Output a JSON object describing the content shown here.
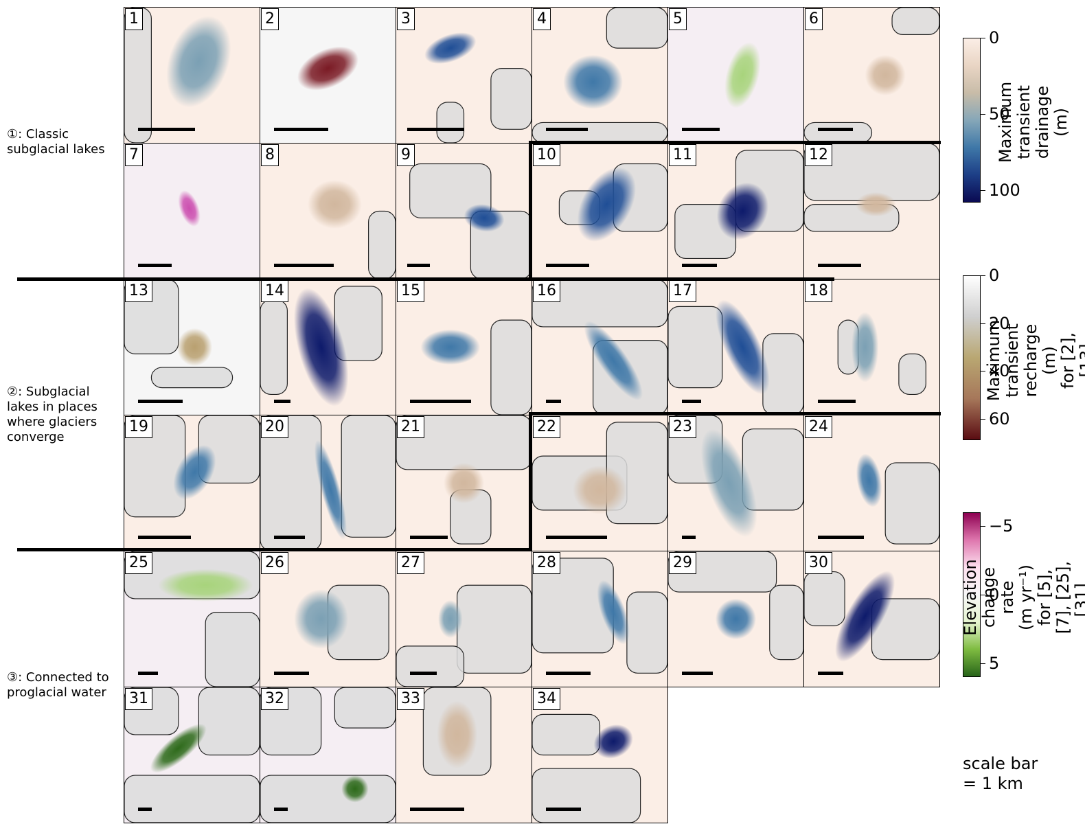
{
  "panels": [
    {
      "n": "1",
      "v": "drainage",
      "blob": [
        0.55,
        0.4,
        0.22,
        0.35,
        20,
        0.35
      ],
      "bar": [
        0.1,
        0.52
      ],
      "ice": [
        [
          0.0,
          0.0,
          0.2,
          1.0
        ]
      ]
    },
    {
      "n": "2",
      "v": "recharge",
      "blob": [
        0.5,
        0.45,
        0.24,
        0.14,
        -25,
        1.0
      ],
      "bar": [
        0.1,
        0.5
      ],
      "ice": []
    },
    {
      "n": "3",
      "v": "drainage",
      "blob": [
        0.4,
        0.3,
        0.2,
        0.1,
        -20,
        0.8
      ],
      "bar": [
        0.08,
        0.5
      ],
      "ice": [
        [
          0.7,
          0.45,
          0.3,
          0.45
        ],
        [
          0.3,
          0.7,
          0.2,
          0.3
        ]
      ]
    },
    {
      "n": "4",
      "v": "drainage",
      "blob": [
        0.45,
        0.55,
        0.22,
        0.2,
        0,
        0.6
      ],
      "bar": [
        0.1,
        0.41
      ],
      "ice": [
        [
          0.55,
          0.0,
          0.45,
          0.3
        ],
        [
          0.0,
          0.85,
          1.0,
          0.15
        ]
      ]
    },
    {
      "n": "5",
      "v": "rate",
      "blob": [
        0.55,
        0.5,
        0.12,
        0.25,
        15,
        0.6
      ],
      "bar": [
        0.1,
        0.38
      ],
      "ice": []
    },
    {
      "n": "6",
      "v": "drainage",
      "blob": [
        0.6,
        0.5,
        0.15,
        0.15,
        0,
        0.1
      ],
      "bar": [
        0.1,
        0.36
      ],
      "ice": [
        [
          0.65,
          0.0,
          0.35,
          0.2
        ],
        [
          0.0,
          0.85,
          0.5,
          0.15
        ]
      ]
    },
    {
      "n": "7",
      "v": "rate",
      "blob": [
        0.48,
        0.48,
        0.07,
        0.14,
        -20,
        -0.7
      ],
      "bar": [
        0.1,
        0.35
      ],
      "ice": []
    },
    {
      "n": "8",
      "v": "drainage",
      "blob": [
        0.55,
        0.45,
        0.2,
        0.18,
        0,
        0.3
      ],
      "bar": [
        0.1,
        0.54
      ],
      "ice": [
        [
          0.8,
          0.5,
          0.2,
          0.5
        ]
      ]
    },
    {
      "n": "9",
      "v": "drainage",
      "blob": [
        0.65,
        0.55,
        0.15,
        0.1,
        10,
        0.7
      ],
      "bar": [
        0.08,
        0.25
      ],
      "ice": [
        [
          0.1,
          0.15,
          0.6,
          0.4
        ],
        [
          0.55,
          0.5,
          0.45,
          0.5
        ]
      ]
    },
    {
      "n": "10",
      "v": "drainage",
      "blob": [
        0.55,
        0.45,
        0.18,
        0.3,
        30,
        0.75
      ],
      "bar": [
        0.1,
        0.42
      ],
      "ice": [
        [
          0.2,
          0.35,
          0.3,
          0.25
        ],
        [
          0.6,
          0.15,
          0.4,
          0.5
        ]
      ]
    },
    {
      "n": "11",
      "v": "drainage",
      "blob": [
        0.55,
        0.5,
        0.18,
        0.22,
        30,
        0.9
      ],
      "bar": [
        0.1,
        0.36
      ],
      "ice": [
        [
          0.05,
          0.45,
          0.45,
          0.4
        ],
        [
          0.5,
          0.05,
          0.5,
          0.6
        ]
      ]
    },
    {
      "n": "12",
      "v": "drainage",
      "blob": [
        0.53,
        0.45,
        0.15,
        0.09,
        0,
        0.3
      ],
      "bar": [
        0.1,
        0.42
      ],
      "ice": [
        [
          0.0,
          0.0,
          1.0,
          0.42
        ],
        [
          0.0,
          0.45,
          0.7,
          0.2
        ]
      ]
    },
    {
      "n": "13",
      "v": "recharge",
      "blob": [
        0.52,
        0.5,
        0.13,
        0.14,
        0,
        0.45
      ],
      "bar": [
        0.1,
        0.43
      ],
      "ice": [
        [
          0.0,
          0.0,
          0.4,
          0.55
        ],
        [
          0.2,
          0.65,
          0.6,
          0.15
        ]
      ]
    },
    {
      "n": "14",
      "v": "drainage",
      "blob": [
        0.45,
        0.5,
        0.17,
        0.45,
        -15,
        1.0
      ],
      "bar": [
        0.1,
        0.22
      ],
      "ice": [
        [
          0.55,
          0.05,
          0.35,
          0.55
        ],
        [
          0.0,
          0.15,
          0.2,
          0.7
        ]
      ]
    },
    {
      "n": "15",
      "v": "drainage",
      "blob": [
        0.4,
        0.5,
        0.22,
        0.13,
        0,
        0.5
      ],
      "bar": [
        0.1,
        0.55
      ],
      "ice": [
        [
          0.7,
          0.3,
          0.3,
          0.7
        ]
      ]
    },
    {
      "n": "16",
      "v": "drainage",
      "blob": [
        0.6,
        0.6,
        0.1,
        0.35,
        -35,
        0.65
      ],
      "bar": [
        0.1,
        0.21
      ],
      "ice": [
        [
          0.0,
          0.0,
          1.0,
          0.35
        ],
        [
          0.45,
          0.45,
          0.55,
          0.55
        ]
      ]
    },
    {
      "n": "17",
      "v": "drainage",
      "blob": [
        0.55,
        0.5,
        0.13,
        0.38,
        -25,
        0.7
      ],
      "bar": [
        0.1,
        0.24
      ],
      "ice": [
        [
          0.0,
          0.2,
          0.4,
          0.6
        ],
        [
          0.7,
          0.4,
          0.3,
          0.6
        ]
      ]
    },
    {
      "n": "18",
      "v": "drainage",
      "blob": [
        0.45,
        0.5,
        0.1,
        0.26,
        0,
        0.45
      ],
      "bar": [
        0.1,
        0.38
      ],
      "ice": [
        [
          0.25,
          0.3,
          0.15,
          0.4
        ],
        [
          0.7,
          0.55,
          0.2,
          0.3
        ]
      ]
    },
    {
      "n": "19",
      "v": "drainage",
      "blob": [
        0.52,
        0.42,
        0.13,
        0.22,
        30,
        0.55
      ],
      "bar": [
        0.1,
        0.49
      ],
      "ice": [
        [
          0.0,
          0.0,
          0.45,
          0.75
        ],
        [
          0.55,
          0.0,
          0.45,
          0.5
        ]
      ]
    },
    {
      "n": "20",
      "v": "drainage",
      "blob": [
        0.52,
        0.55,
        0.07,
        0.38,
        -15,
        0.65
      ],
      "bar": [
        0.1,
        0.33
      ],
      "ice": [
        [
          0.0,
          0.0,
          0.45,
          1.0
        ],
        [
          0.6,
          0.0,
          0.4,
          0.9
        ]
      ]
    },
    {
      "n": "21",
      "v": "drainage",
      "blob": [
        0.5,
        0.5,
        0.15,
        0.15,
        0,
        0.25
      ],
      "bar": [
        0.1,
        0.38
      ],
      "ice": [
        [
          0.0,
          0.0,
          1.0,
          0.4
        ],
        [
          0.4,
          0.55,
          0.3,
          0.4
        ]
      ]
    },
    {
      "n": "22",
      "v": "drainage",
      "blob": [
        0.5,
        0.55,
        0.2,
        0.18,
        0,
        0.25
      ],
      "bar": [
        0.1,
        0.55
      ],
      "ice": [
        [
          0.0,
          0.3,
          0.7,
          0.4
        ],
        [
          0.55,
          0.05,
          0.45,
          0.75
        ]
      ]
    },
    {
      "n": "23",
      "v": "drainage",
      "blob": [
        0.45,
        0.5,
        0.16,
        0.42,
        -20,
        0.4
      ],
      "bar": [
        0.1,
        0.2
      ],
      "ice": [
        [
          0.55,
          0.1,
          0.45,
          0.6
        ],
        [
          0.0,
          0.0,
          0.4,
          0.5
        ]
      ]
    },
    {
      "n": "24",
      "v": "drainage",
      "blob": [
        0.48,
        0.48,
        0.09,
        0.2,
        -10,
        0.5
      ],
      "bar": [
        0.1,
        0.44
      ],
      "ice": [
        [
          0.6,
          0.35,
          0.4,
          0.6
        ]
      ]
    },
    {
      "n": "25",
      "v": "rate",
      "blob": [
        0.6,
        0.25,
        0.35,
        0.12,
        0,
        0.5
      ],
      "bar": [
        0.1,
        0.25
      ],
      "ice": [
        [
          0.0,
          0.0,
          1.0,
          0.35
        ],
        [
          0.6,
          0.45,
          0.4,
          0.55
        ]
      ]
    },
    {
      "n": "26",
      "v": "drainage",
      "blob": [
        0.45,
        0.5,
        0.2,
        0.22,
        0,
        0.35
      ],
      "bar": [
        0.1,
        0.36
      ],
      "ice": [
        [
          0.5,
          0.25,
          0.45,
          0.55
        ]
      ]
    },
    {
      "n": "27",
      "v": "drainage",
      "blob": [
        0.4,
        0.5,
        0.09,
        0.14,
        0,
        0.4
      ],
      "bar": [
        0.1,
        0.3
      ],
      "ice": [
        [
          0.45,
          0.25,
          0.55,
          0.65
        ],
        [
          0.0,
          0.7,
          0.5,
          0.3
        ]
      ]
    },
    {
      "n": "28",
      "v": "drainage",
      "blob": [
        0.6,
        0.45,
        0.09,
        0.25,
        -20,
        0.5
      ],
      "bar": [
        0.1,
        0.43
      ],
      "ice": [
        [
          0.0,
          0.05,
          0.6,
          0.7
        ],
        [
          0.7,
          0.3,
          0.3,
          0.6
        ]
      ]
    },
    {
      "n": "29",
      "v": "drainage",
      "blob": [
        0.5,
        0.5,
        0.15,
        0.15,
        0,
        0.55
      ],
      "bar": [
        0.1,
        0.33
      ],
      "ice": [
        [
          0.0,
          0.0,
          0.8,
          0.3
        ],
        [
          0.75,
          0.25,
          0.25,
          0.55
        ]
      ]
    },
    {
      "n": "30",
      "v": "drainage",
      "blob": [
        0.45,
        0.48,
        0.13,
        0.38,
        30,
        0.95
      ],
      "bar": [
        0.1,
        0.29
      ],
      "ice": [
        [
          0.0,
          0.15,
          0.3,
          0.4
        ],
        [
          0.5,
          0.35,
          0.5,
          0.45
        ]
      ]
    },
    {
      "n": "31",
      "v": "rate",
      "blob": [
        0.4,
        0.45,
        0.26,
        0.09,
        -40,
        1.0
      ],
      "bar": [
        0.1,
        0.2
      ],
      "ice": [
        [
          0.0,
          0.0,
          0.4,
          0.35
        ],
        [
          0.55,
          0.0,
          0.45,
          0.5
        ],
        [
          0.0,
          0.65,
          1.0,
          0.35
        ]
      ]
    },
    {
      "n": "32",
      "v": "rate",
      "blob": [
        0.7,
        0.75,
        0.1,
        0.1,
        0,
        1.0
      ],
      "bar": [
        0.1,
        0.2
      ],
      "ice": [
        [
          0.0,
          0.0,
          0.45,
          0.5
        ],
        [
          0.55,
          0.0,
          0.45,
          0.3
        ],
        [
          0.0,
          0.65,
          1.0,
          0.35
        ]
      ]
    },
    {
      "n": "33",
      "v": "drainage",
      "blob": [
        0.45,
        0.35,
        0.15,
        0.25,
        0,
        0.3
      ],
      "bar": [
        0.1,
        0.5
      ],
      "ice": [
        [
          0.2,
          0.0,
          0.5,
          0.65
        ]
      ]
    },
    {
      "n": "34",
      "v": "drainage",
      "blob": [
        0.6,
        0.4,
        0.15,
        0.12,
        -25,
        0.95
      ],
      "bar": [
        0.1,
        0.36
      ],
      "ice": [
        [
          0.0,
          0.2,
          0.5,
          0.3
        ],
        [
          0.0,
          0.6,
          0.8,
          0.4
        ]
      ]
    }
  ],
  "groups": [
    {
      "label": "①: Classic\nsubglacial lakes"
    },
    {
      "label": "②: Subglacial\nlakes in places\nwhere glaciers\nconverge"
    },
    {
      "label": "③: Connected to\nproglacial water"
    }
  ],
  "colorbars": [
    {
      "id": "drainage",
      "title": "Maximum transient\ndrainage (m)",
      "stops": [
        "#fbeee6",
        "#e9d5c4",
        "#c8bca8",
        "#86a7b8",
        "#3f78a8",
        "#1d3f87",
        "#0a0a52"
      ],
      "ticks": [
        {
          "label": "0",
          "f": 0.0
        },
        {
          "label": "50",
          "f": 0.463
        },
        {
          "label": "100",
          "f": 0.926
        }
      ]
    },
    {
      "id": "recharge",
      "title": "Maximum transient\nrecharge (m)\nfor [2], [13]",
      "stops": [
        "#ffffff",
        "#cfcfcf",
        "#b9a772",
        "#a6775a",
        "#5a0c12"
      ],
      "ticks": [
        {
          "label": "0",
          "f": 0.0
        },
        {
          "label": "20",
          "f": 0.29
        },
        {
          "label": "40",
          "f": 0.58
        },
        {
          "label": "60",
          "f": 0.87
        }
      ]
    },
    {
      "id": "rate",
      "title": "Elevation change rate\n(m yr⁻¹)\nfor [5], [7], [25], [31], [32]",
      "stops": [
        "#8e0152",
        "#de77ae",
        "#fde0ef",
        "#f7f7f7",
        "#e6f5d0",
        "#7fbc41",
        "#276419"
      ],
      "ticks": [
        {
          "label": "−5",
          "f": 0.083
        },
        {
          "label": "0",
          "f": 0.5
        },
        {
          "label": "5",
          "f": 0.917
        }
      ]
    }
  ],
  "scale_note": "scale bar\n= 1 km"
}
